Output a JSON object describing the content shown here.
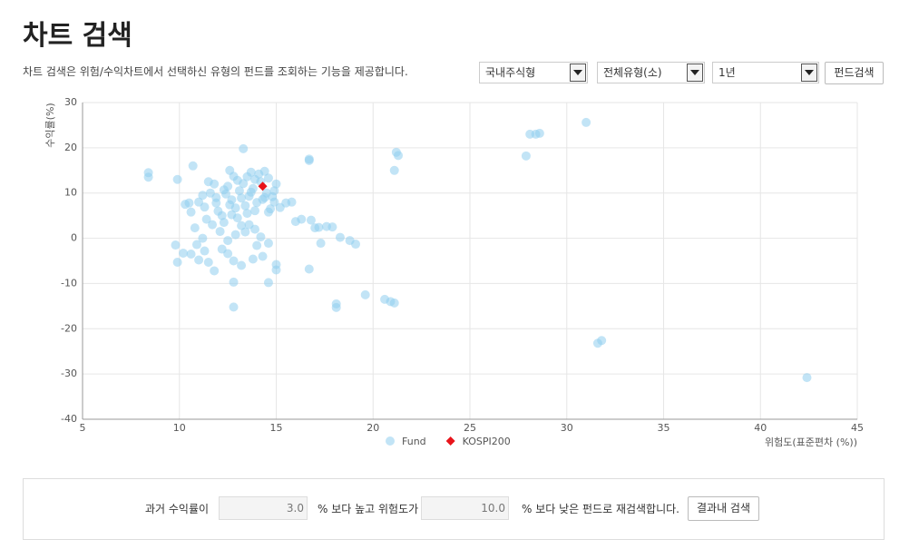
{
  "header": {
    "title": "차트 검색",
    "description": "차트 검색은 위험/수익차트에서 선택하신 유형의 펀드를 조회하는 기능을 제공합니다."
  },
  "controls": {
    "selects": [
      "국내주식형",
      "전체유형(소)",
      "1년"
    ],
    "button": "펀드검색"
  },
  "chart_data": {
    "type": "scatter",
    "y_label": "수익률(%)",
    "x_label": "위험도(표준편차 (%))",
    "xlim": [
      5,
      45
    ],
    "xticks": [
      5,
      10,
      15,
      20,
      25,
      30,
      35,
      40,
      45
    ],
    "ylim": [
      -40,
      30
    ],
    "yticks": [
      -40,
      -30,
      -20,
      -10,
      0,
      10,
      20,
      30
    ],
    "grid": true,
    "legend": "bottom",
    "series": [
      {
        "name": "Fund",
        "color": "#8fcdef",
        "marker": "circle",
        "x": [
          8.4,
          8.4,
          9.8,
          9.9,
          9.9,
          10.7,
          10.2,
          10.6,
          11,
          11.5,
          11.8,
          12.8,
          12.8,
          13.2,
          14.6,
          15,
          15,
          16.7,
          13.3,
          16.7,
          16.7,
          18.1,
          18.1,
          19.6,
          20.6,
          20.9,
          21.1,
          21.2,
          21.3,
          21.1,
          27.9,
          28.1,
          28.4,
          28.6,
          31,
          31.6,
          31.8,
          42.4,
          16,
          16.3,
          16.8,
          17,
          17.2,
          17.3,
          17.6,
          17.9,
          18.3,
          18.8,
          19.1,
          14.6,
          14,
          14.3,
          13.8,
          12.5,
          12.2,
          12.8,
          11.3,
          10.9,
          11.2,
          15.5,
          15.8,
          15.2,
          15,
          14.9,
          11,
          11.2,
          11.5,
          11.8,
          11.6,
          11.9,
          12,
          12.2,
          12.3,
          12.4,
          12.5,
          12.6,
          12.7,
          12.8,
          12.9,
          13,
          13.1,
          13.2,
          13.3,
          13.4,
          13.5,
          13.6,
          13.7,
          13.8,
          13.9,
          14,
          14.1,
          14.2,
          14.3,
          14.4,
          14.5,
          14.6,
          14.7,
          14.8,
          13.6,
          13.9,
          12.1,
          11.7,
          11.4,
          10.5,
          10.6,
          10.3,
          11.3,
          12.9,
          13.4,
          14.2,
          12.5,
          14.6,
          13,
          12.3,
          13.7,
          14.4,
          12.7,
          13.2,
          11.9,
          10.8,
          14.9,
          13.5,
          12.6,
          13.9
        ],
        "y": [
          14.5,
          13.5,
          -1.5,
          -5.3,
          13,
          16,
          -3.3,
          -3.5,
          -4.8,
          -5.3,
          -7.2,
          -9.7,
          -15.2,
          -6,
          -9.8,
          -5.8,
          -7,
          -6.8,
          19.8,
          17.5,
          17.2,
          -14.5,
          -15.3,
          -12.5,
          -13.5,
          -14,
          -14.3,
          19,
          18.3,
          15,
          18.2,
          23,
          23,
          23.2,
          25.6,
          -23.2,
          -22.6,
          -30.8,
          3.7,
          4.2,
          4,
          2.3,
          2.4,
          -1.1,
          2.6,
          2.5,
          0.2,
          -0.5,
          -1.3,
          -1.1,
          -1.6,
          -4,
          -4.6,
          -3.4,
          -2.4,
          -5,
          -2.8,
          -1.4,
          0,
          7.8,
          8,
          6.8,
          12,
          10.5,
          8,
          9.5,
          12.5,
          12,
          10,
          7.8,
          6,
          5,
          3.5,
          9.8,
          11.5,
          15,
          8.5,
          13.7,
          6.7,
          4.5,
          10.5,
          8.9,
          12.1,
          7.2,
          5.5,
          9.3,
          14.6,
          11,
          13,
          7.9,
          14.2,
          12.5,
          8.6,
          14.8,
          10,
          13.3,
          6.5,
          9.2,
          3,
          2,
          1.5,
          3,
          4.2,
          7.8,
          5.8,
          7.5,
          6.9,
          0.8,
          1.4,
          0.3,
          -0.5,
          5.8,
          12.8,
          10.7,
          10.2,
          9,
          5.2,
          2.8,
          9,
          2.3,
          8,
          13.6,
          7.4,
          6.1
        ]
      },
      {
        "name": "KOSPI200",
        "color": "#e8141b",
        "marker": "diamond",
        "x": [
          14.3
        ],
        "y": [
          11.5
        ]
      }
    ]
  },
  "filter": {
    "label1": "과거 수익률이",
    "input1": "3.0",
    "label2": "% 보다 높고 위험도가",
    "input2": "10.0",
    "label3": "% 보다 낮은 펀드로 재검색합니다.",
    "button": "결과내 검색"
  }
}
